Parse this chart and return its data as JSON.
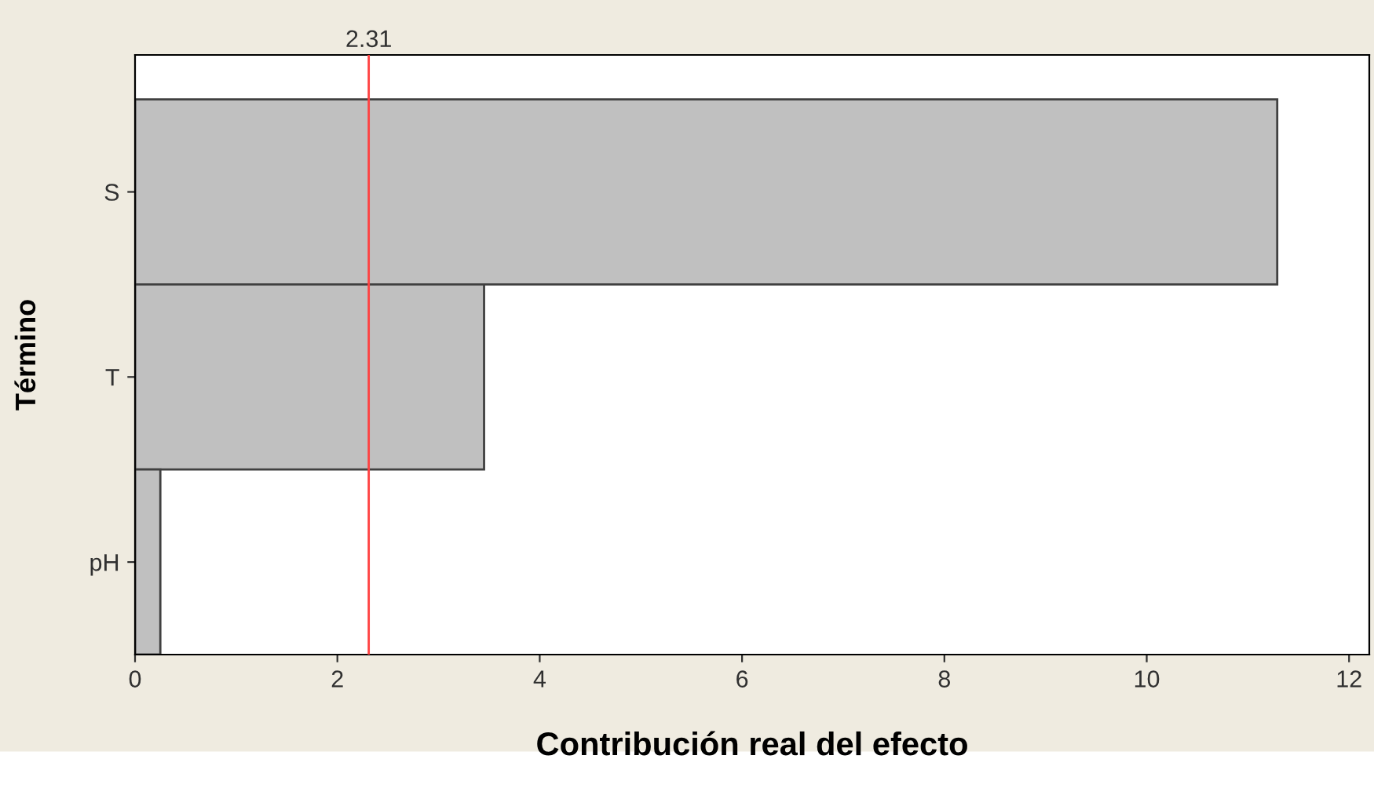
{
  "chart_data": {
    "type": "bar",
    "orientation": "horizontal",
    "ylabel": "Término",
    "xlabel": "Contribución real del efecto",
    "categories": [
      "S",
      "T",
      "pH"
    ],
    "values": [
      11.29,
      3.45,
      0.25
    ],
    "color": "#c0c0c0",
    "xlim": [
      0,
      12.2
    ],
    "xticks": [
      0,
      2,
      4,
      6,
      8,
      10,
      12
    ],
    "ref_lines": [
      {
        "axis": "x",
        "value": 2.31,
        "label": "2.31",
        "color": "#ff4040"
      }
    ],
    "grid": false,
    "legend": false
  }
}
